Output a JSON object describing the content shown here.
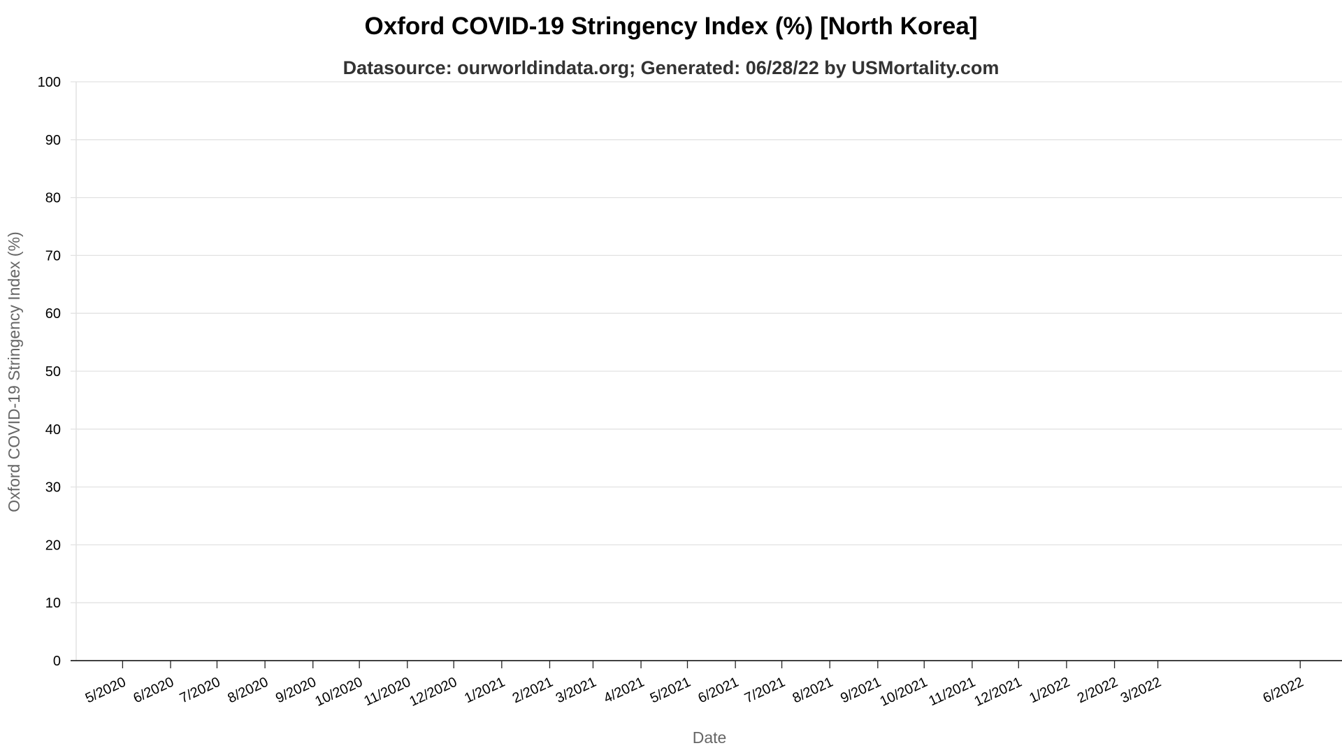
{
  "chart_data": {
    "type": "line",
    "title": "Oxford COVID-19 Stringency Index (%) [North Korea]",
    "subtitle": "Datasource: ourworldindata.org; Generated: 06/28/22 by USMortality.com",
    "xlabel": "Date",
    "ylabel": "Oxford COVID-19 Stringency Index (%)",
    "ylim": [
      0,
      100
    ],
    "y_ticks": [
      0,
      10,
      20,
      30,
      40,
      50,
      60,
      70,
      80,
      90,
      100
    ],
    "xlim": [
      "2020-04-01",
      "2022-06-28"
    ],
    "x_ticks": [
      {
        "date": "2020-05-01",
        "label": "5/2020"
      },
      {
        "date": "2020-06-01",
        "label": "6/2020"
      },
      {
        "date": "2020-07-01",
        "label": "7/2020"
      },
      {
        "date": "2020-08-01",
        "label": "8/2020"
      },
      {
        "date": "2020-09-01",
        "label": "9/2020"
      },
      {
        "date": "2020-10-01",
        "label": "10/2020"
      },
      {
        "date": "2020-11-01",
        "label": "11/2020"
      },
      {
        "date": "2020-12-01",
        "label": "12/2020"
      },
      {
        "date": "2021-01-01",
        "label": "1/2021"
      },
      {
        "date": "2021-02-01",
        "label": "2/2021"
      },
      {
        "date": "2021-03-01",
        "label": "3/2021"
      },
      {
        "date": "2021-04-01",
        "label": "4/2021"
      },
      {
        "date": "2021-05-01",
        "label": "5/2021"
      },
      {
        "date": "2021-06-01",
        "label": "6/2021"
      },
      {
        "date": "2021-07-01",
        "label": "7/2021"
      },
      {
        "date": "2021-08-01",
        "label": "8/2021"
      },
      {
        "date": "2021-09-01",
        "label": "9/2021"
      },
      {
        "date": "2021-10-01",
        "label": "10/2021"
      },
      {
        "date": "2021-11-01",
        "label": "11/2021"
      },
      {
        "date": "2021-12-01",
        "label": "12/2021"
      },
      {
        "date": "2022-01-01",
        "label": "1/2022"
      },
      {
        "date": "2022-02-01",
        "label": "2/2022"
      },
      {
        "date": "2022-03-01",
        "label": "3/2022"
      },
      {
        "date": "2022-06-01",
        "label": "6/2022"
      }
    ],
    "series": [],
    "grid": true,
    "legend": "none",
    "colors": {
      "grid": "#e2e2e2",
      "x_axis": "#000000",
      "axis_label": "#666666",
      "title": "#000000",
      "subtitle": "#333333"
    }
  }
}
